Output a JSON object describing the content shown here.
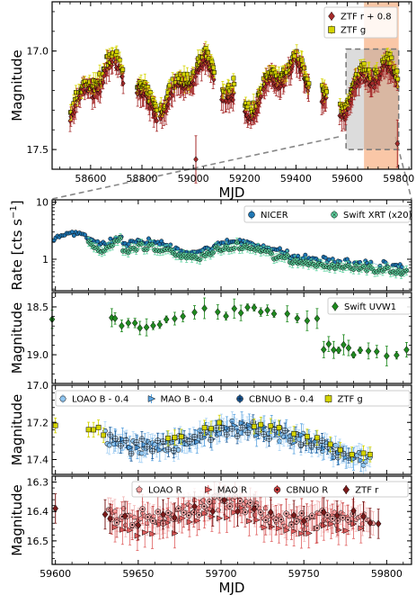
{
  "chart_data": [
    {
      "id": "top",
      "type": "scatter",
      "xlabel": "MJD",
      "ylabel": "Magnitude",
      "xlim": [
        58450,
        59850
      ],
      "ylim": [
        17.6,
        16.75
      ],
      "y_inverted": true,
      "xticks": [
        58600,
        58800,
        59000,
        59200,
        59400,
        59600,
        59800
      ],
      "yticks": [
        17.0,
        17.5
      ],
      "ytick_labels": [
        "17.0",
        "17.5"
      ],
      "legend_position": "top-right",
      "shaded_regions": [
        {
          "x0": 59595,
          "x1": 59800,
          "y0": 16.99,
          "y1": 17.5,
          "style": "gray-dashed-box"
        },
        {
          "x0": 59665,
          "x1": 59800,
          "style": "orange-band"
        }
      ],
      "series": [
        {
          "name": "ZTF r + 0.8",
          "marker": "diamond",
          "color": "#a52a2a"
        },
        {
          "name": "ZTF g",
          "marker": "square",
          "color": "#d4d400"
        }
      ],
      "highlight_points": [
        {
          "x": 59795,
          "y": 17.47
        },
        {
          "x": 59010,
          "y": 17.55
        }
      ]
    },
    {
      "id": "rate",
      "type": "scatter",
      "ylabel": "Rate [cts s$^{-1}$]",
      "ylabel_display": "Rate [cts s",
      "ylabel_sup": "−1",
      "ylabel_close": "]",
      "y_scale": "log",
      "xlim": [
        59598,
        59815
      ],
      "ylim": [
        0.28,
        11
      ],
      "yticks": [
        1,
        10
      ],
      "ytick_labels": [
        "1",
        "10"
      ],
      "legend_position": "top-right",
      "series": [
        {
          "name": "NICER",
          "marker": "circle",
          "color": "#1f77b4"
        },
        {
          "name": "Swift XRT (x20)",
          "marker": "x-circle",
          "color": "#5fd3a0"
        }
      ]
    },
    {
      "id": "uvw1",
      "type": "scatter",
      "ylabel": "Magnitude",
      "xlim": [
        59598,
        59815
      ],
      "ylim": [
        19.3,
        18.35
      ],
      "y_inverted": true,
      "yticks": [
        18.5,
        19.0
      ],
      "ytick_labels": [
        "18.5",
        "19.0"
      ],
      "legend_position": "top-right",
      "series": [
        {
          "name": "Swift UVW1",
          "marker": "diamond",
          "color": "#1f8a1f"
        }
      ]
    },
    {
      "id": "blue",
      "type": "scatter",
      "ylabel": "Magnitude",
      "xlim": [
        59598,
        59815
      ],
      "ylim": [
        17.48,
        17.0
      ],
      "y_inverted": true,
      "yticks": [
        17.0,
        17.2,
        17.4
      ],
      "ytick_labels": [
        "17.0",
        "17.2",
        "17.4"
      ],
      "legend_position": "top",
      "series": [
        {
          "name": "LOAO B - 0.4",
          "marker": "hexagon",
          "color": "#8fc5f0"
        },
        {
          "name": "MAO B - 0.4",
          "marker": "triangle-right",
          "color": "#5aa3e0"
        },
        {
          "name": "CBNUO B - 0.4",
          "marker": "plus-circle",
          "color": "#1a5a9a"
        },
        {
          "name": "ZTF g",
          "marker": "square",
          "color": "#d4d400"
        }
      ]
    },
    {
      "id": "red",
      "type": "scatter",
      "ylabel": "Magnitude",
      "xlabel": "MJD",
      "xlim": [
        59598,
        59815
      ],
      "ylim": [
        16.58,
        16.28
      ],
      "y_inverted": true,
      "xticks": [
        59600,
        59650,
        59700,
        59750,
        59800
      ],
      "yticks": [
        16.3,
        16.4,
        16.5
      ],
      "ytick_labels": [
        "16.3",
        "16.4",
        "16.5"
      ],
      "legend_position": "top",
      "series": [
        {
          "name": "LOAO R",
          "marker": "pentagon",
          "color": "#f4a0a0"
        },
        {
          "name": "MAO R",
          "marker": "triangle-right",
          "color": "#e06060"
        },
        {
          "name": "CBNUO R",
          "marker": "circle-dot",
          "color": "#c84040"
        },
        {
          "name": "ZTF r",
          "marker": "diamond",
          "color": "#7a1a1a"
        }
      ]
    }
  ]
}
